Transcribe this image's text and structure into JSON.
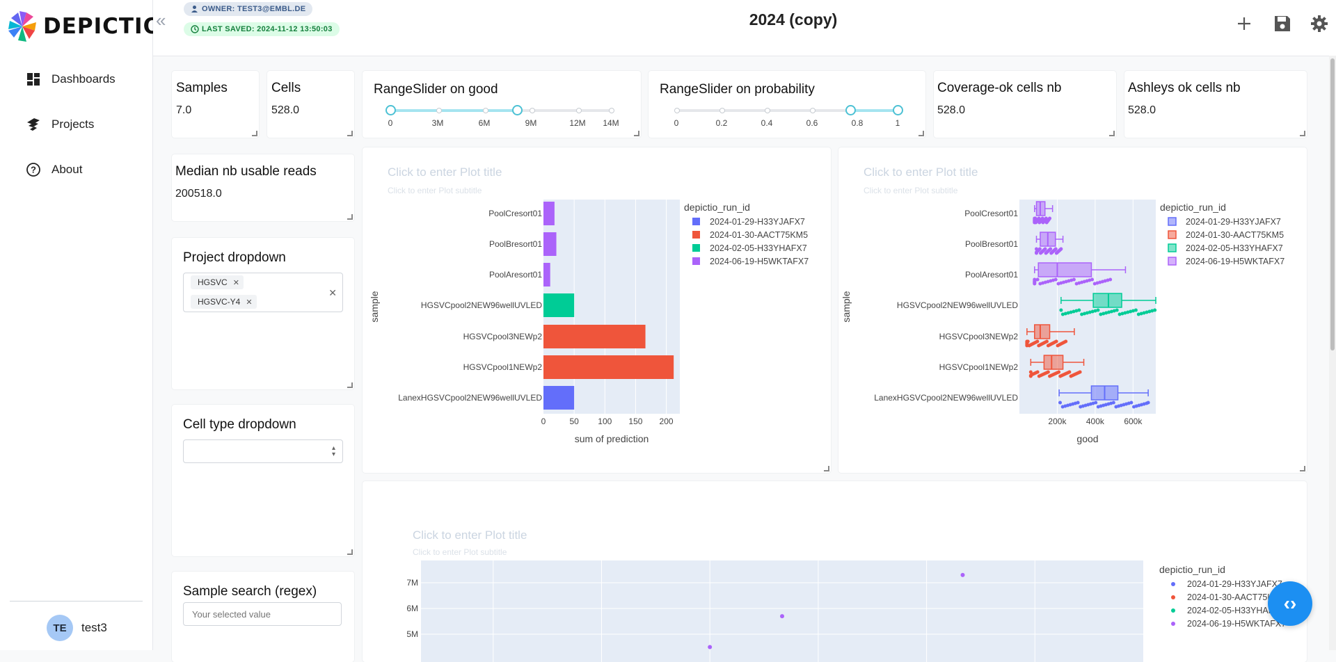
{
  "app": {
    "brand": "DEPICTIO"
  },
  "sidebar": {
    "items": [
      {
        "label": "Dashboards",
        "icon": "dashboard-icon"
      },
      {
        "label": "Projects",
        "icon": "projects-icon"
      },
      {
        "label": "About",
        "icon": "help-circle-icon"
      }
    ],
    "user": {
      "initials": "TE",
      "name": "test3"
    }
  },
  "header": {
    "owner_badge": "OWNER: TEST3@EMBL.DE",
    "saved_badge": "LAST SAVED: 2024-11-12 13:50:03",
    "title": "2024 (copy)",
    "actions": [
      "add-icon",
      "save-icon",
      "settings-icon"
    ]
  },
  "metrics": [
    {
      "title": "Samples",
      "value": "7.0"
    },
    {
      "title": "Cells",
      "value": "528.0"
    },
    {
      "title": "Coverage-ok cells nb",
      "value": "528.0"
    },
    {
      "title": "Ashleys ok cells nb",
      "value": "528.0"
    },
    {
      "title": "Median nb usable reads",
      "value": "200518.0"
    }
  ],
  "sliders": [
    {
      "title": "RangeSlider on good",
      "labels": [
        "0",
        "3M",
        "6M",
        "9M",
        "12M",
        "14M"
      ],
      "low": 0,
      "high": 9000000,
      "max": 14000000
    },
    {
      "title": "RangeSlider on probability",
      "labels": [
        "0",
        "0.2",
        "0.4",
        "0.6",
        "0.8",
        "1"
      ],
      "low": 0.8,
      "high": 1,
      "max": 1
    }
  ],
  "controls": {
    "project": {
      "title": "Project dropdown",
      "chips": [
        "HGSVC",
        "HGSVC-Y4"
      ]
    },
    "celltype": {
      "title": "Cell type dropdown",
      "value": ""
    },
    "search": {
      "title": "Sample search (regex)",
      "placeholder": "Your selected value"
    }
  },
  "plot_placeholder": {
    "title": "Click to enter Plot title",
    "subtitle": "Click to enter Plot subtitle"
  },
  "legend_colors": [
    "#636efa",
    "#ef553b",
    "#00cc96",
    "#ab63fa"
  ],
  "chart_data": [
    {
      "type": "bar",
      "orientation": "horizontal",
      "categories": [
        "PoolCresort01",
        "PoolBresort01",
        "PoolAresort01",
        "HGSVCpool2NEW96wellUVLED",
        "HGSVCpool3NEWp2",
        "HGSVCpool1NEWp2",
        "LanexHGSVCpool2NEW96wellUVLED"
      ],
      "values": [
        18,
        21,
        11,
        50,
        166,
        212,
        50
      ],
      "series_index": [
        3,
        3,
        3,
        2,
        1,
        1,
        0
      ],
      "xlabel": "sum of prediction",
      "ylabel": "sample",
      "xticks": [
        0,
        50,
        100,
        150,
        200
      ],
      "xlim": [
        0,
        222
      ],
      "legend_title": "depictio_run_id",
      "legend": [
        "2024-01-29-H33YJAFX7",
        "2024-01-30-AACT75KM5",
        "2024-02-05-H33YHAFX7",
        "2024-06-19-H5WKTAFX7"
      ]
    },
    {
      "type": "box",
      "orientation": "horizontal",
      "categories": [
        "PoolCresort01",
        "PoolBresort01",
        "PoolAresort01",
        "HGSVCpool2NEW96wellUVLED",
        "HGSVCpool3NEWp2",
        "HGSVCpool1NEWp2",
        "LanexHGSVCpool2NEW96wellUVLED"
      ],
      "series_index": [
        3,
        3,
        3,
        2,
        1,
        1,
        0
      ],
      "boxes": [
        {
          "min": 80000,
          "q1": 90000,
          "median": 110000,
          "q3": 135000,
          "max": 175000
        },
        {
          "min": 90000,
          "q1": 110000,
          "median": 150000,
          "q3": 190000,
          "max": 230000
        },
        {
          "min": 80000,
          "q1": 100000,
          "median": 200000,
          "q3": 380000,
          "max": 560000
        },
        {
          "min": 220000,
          "q1": 390000,
          "median": 470000,
          "q3": 540000,
          "max": 720000
        },
        {
          "min": 40000,
          "q1": 80000,
          "median": 110000,
          "q3": 160000,
          "max": 290000
        },
        {
          "min": 60000,
          "q1": 130000,
          "median": 170000,
          "q3": 230000,
          "max": 340000
        },
        {
          "min": 210000,
          "q1": 380000,
          "median": 450000,
          "q3": 520000,
          "max": 680000
        }
      ],
      "xlabel": "good",
      "ylabel": "sample",
      "xticks": [
        200000,
        400000,
        600000
      ],
      "xticklabels": [
        "200k",
        "400k",
        "600k"
      ],
      "xlim": [
        0,
        720000
      ],
      "legend_title": "depictio_run_id",
      "legend": [
        "2024-01-29-H33YJAFX7",
        "2024-01-30-AACT75KM5",
        "2024-02-05-H33YHAFX7",
        "2024-06-19-H5WKTAFX7"
      ]
    },
    {
      "type": "scatter",
      "yticklabels": [
        "5M",
        "6M",
        "7M"
      ],
      "yticks": [
        5000000,
        6000000,
        7000000
      ],
      "points": [
        {
          "x": 0.75,
          "y": 7300000,
          "s": 3
        },
        {
          "x": 0.5,
          "y": 5700000,
          "s": 3
        },
        {
          "x": 0.4,
          "y": 4500000,
          "s": 3
        }
      ],
      "legend_title": "depictio_run_id",
      "legend": [
        "2024-01-29-H33YJAFX7",
        "2024-01-30-AACT75KM5",
        "2024-02-05-H33YHAFX7",
        "2024-06-19-H5WKTAFX7"
      ]
    }
  ]
}
